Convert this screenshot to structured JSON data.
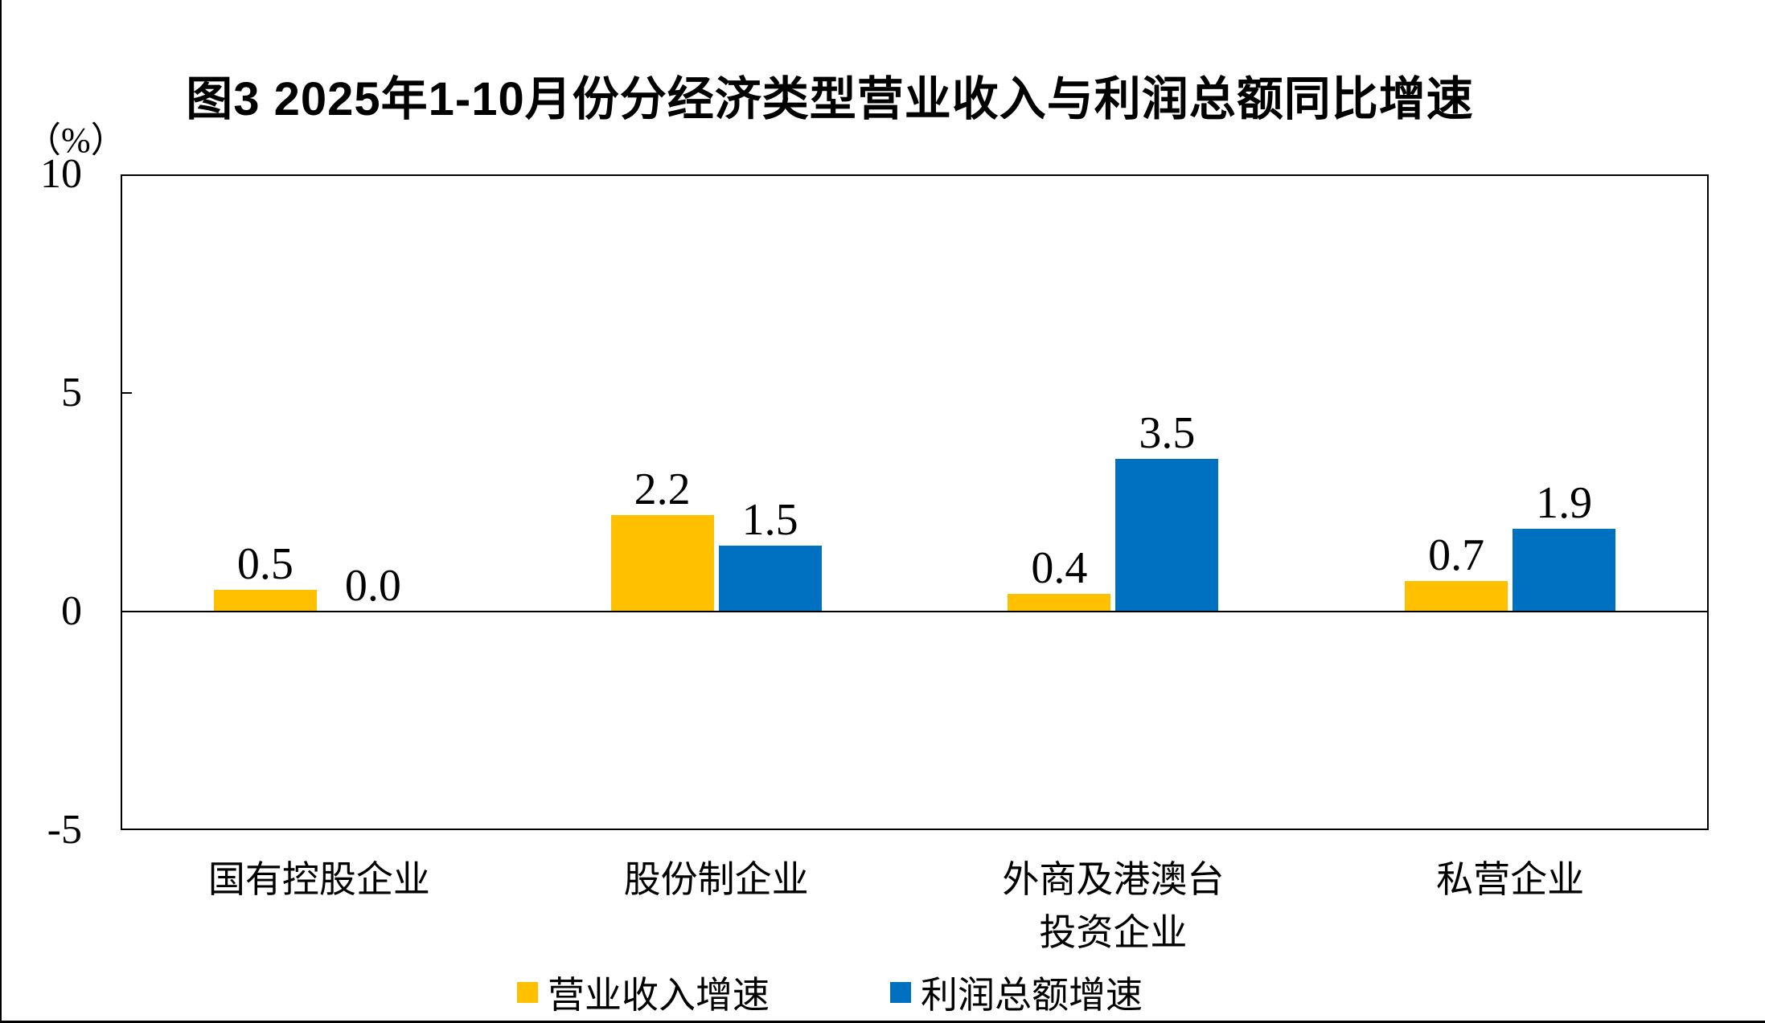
{
  "figure": {
    "title": "图3  2025年1-10月份分经济类型营业收入与利润总额同比增速",
    "unit_label": "（%）"
  },
  "chart_data": {
    "type": "bar",
    "title": "图3  2025年1-10月份分经济类型营业收入与利润总额同比增速",
    "ylabel": "（%）",
    "ylim": [
      -5,
      10
    ],
    "yticks": [
      "10",
      "5",
      "0",
      "-5"
    ],
    "grid": false,
    "legend_position": "bottom",
    "value_labels": "outside-end",
    "categories": [
      "国有控股企业",
      "股份制企业",
      "外商及港澳台\n投资企业",
      "私营企业"
    ],
    "series": [
      {
        "name": "营业收入增速",
        "color": "#FFC000",
        "values": [
          0.5,
          2.2,
          0.4,
          0.7
        ],
        "labels": [
          "0.5",
          "2.2",
          "0.4",
          "0.7"
        ]
      },
      {
        "name": "利润总额增速",
        "color": "#0070C0",
        "values": [
          0.0,
          1.5,
          3.5,
          1.9
        ],
        "labels": [
          "0.0",
          "1.5",
          "3.5",
          "1.9"
        ]
      }
    ]
  }
}
